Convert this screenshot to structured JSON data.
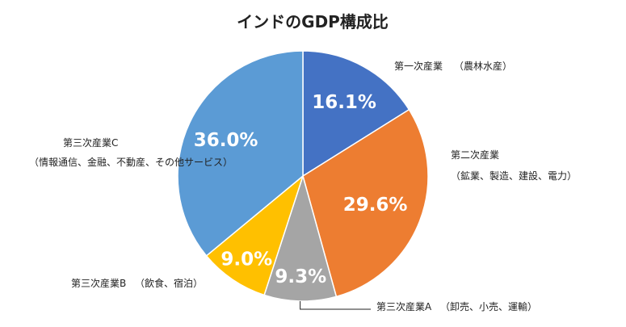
{
  "chart_data": {
    "type": "pie",
    "title": "インドのGDP構成比",
    "slices": [
      {
        "label": "第一次産業",
        "sublabel": "（農林水産）",
        "value": 16.1,
        "display": "16.1%",
        "color": "#4472C4"
      },
      {
        "label": "第二次産業",
        "sublabel": "（鉱業、製造、建設、電力）",
        "value": 29.6,
        "display": "29.6%",
        "color": "#ED7D31"
      },
      {
        "label": "第三次産業A",
        "sublabel": "（卸売、小売、運輸）",
        "value": 9.3,
        "display": "9.3%",
        "color": "#A5A5A5"
      },
      {
        "label": "第三次産業B",
        "sublabel": "（飲食、宿泊）",
        "value": 9.0,
        "display": "9.0%",
        "color": "#FFC000"
      },
      {
        "label": "第三次産業C",
        "sublabel": "（情報通信、金融、不動産、その他サービス）",
        "value": 36.0,
        "display": "36.0%",
        "color": "#5B9BD5"
      }
    ],
    "legend": "none"
  }
}
